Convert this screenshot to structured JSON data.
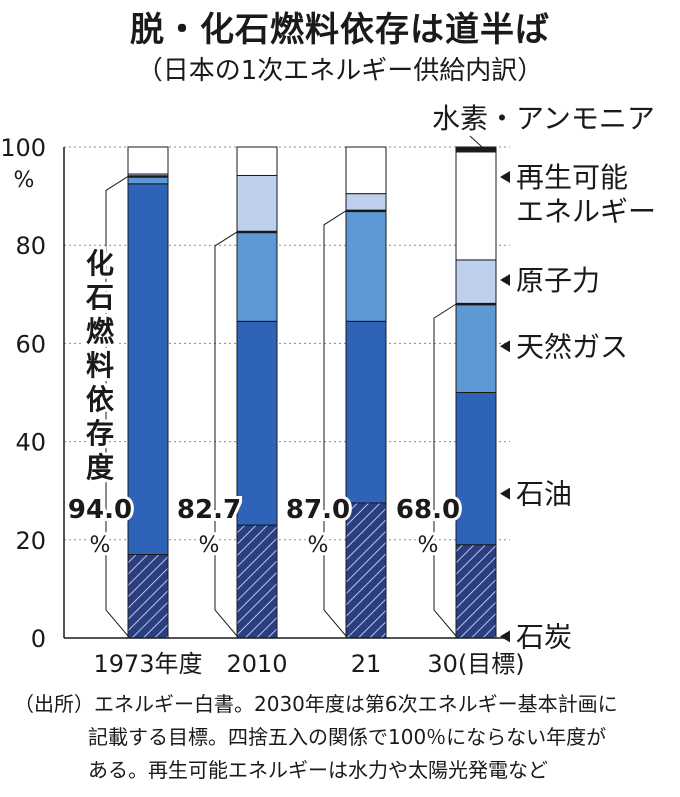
{
  "title": "脱・化石燃料依存は道半ば",
  "subtitle": "（日本の1次エネルギー供給内訳）",
  "colors": {
    "coal": "#2b3f80",
    "coal_hatch": "#b5c3ee",
    "oil": "#2e63b8",
    "gas": "#5d9ad5",
    "nuclear": "#bfd0ee",
    "renewable": "#ffffff",
    "hydrogen_ammonia": "#1a1a1a",
    "outline": "#1a1a1a"
  },
  "chart_data": {
    "type": "bar",
    "stacked": true,
    "categories": [
      "1973年度",
      "2010",
      "21",
      "30(目標)"
    ],
    "ylim": [
      0,
      100
    ],
    "yticks": [
      0,
      20,
      40,
      60,
      80,
      100
    ],
    "y_unit": "%",
    "grid": "dotted",
    "series": [
      {
        "name": "石炭",
        "key": "coal",
        "values": [
          17.0,
          23.0,
          27.5,
          19.0
        ]
      },
      {
        "name": "石油",
        "key": "oil",
        "values": [
          75.5,
          41.5,
          37.0,
          31.0
        ]
      },
      {
        "name": "天然ガス",
        "key": "gas",
        "values": [
          1.5,
          18.2,
          22.5,
          18.0
        ]
      },
      {
        "name": "原子力",
        "key": "nuclear",
        "values": [
          0.5,
          11.5,
          3.5,
          9.0
        ]
      },
      {
        "name": "再生可能エネルギー",
        "key": "renewable",
        "values": [
          5.5,
          5.8,
          9.5,
          22.0
        ]
      },
      {
        "name": "水素・アンモニア",
        "key": "hydrogen_ammonia",
        "values": [
          0,
          0,
          0,
          1.0
        ]
      }
    ],
    "fossil_dependency": {
      "label": "化石燃料依存度",
      "values": [
        "94.0",
        "82.7",
        "87.0",
        "68.0"
      ],
      "unit": "%"
    },
    "legend": [
      "水素・アンモニア",
      "再生可能エネルギー",
      "原子力",
      "天然ガス",
      "石油",
      "石炭"
    ]
  },
  "source": {
    "line1": "（出所）エネルギー白書。2030年度は第6次エネルギー基本計画に",
    "line2": "記載する目標。四捨五入の関係で100％にならない年度が",
    "line3": "ある。再生可能エネルギーは水力や太陽光発電など"
  }
}
